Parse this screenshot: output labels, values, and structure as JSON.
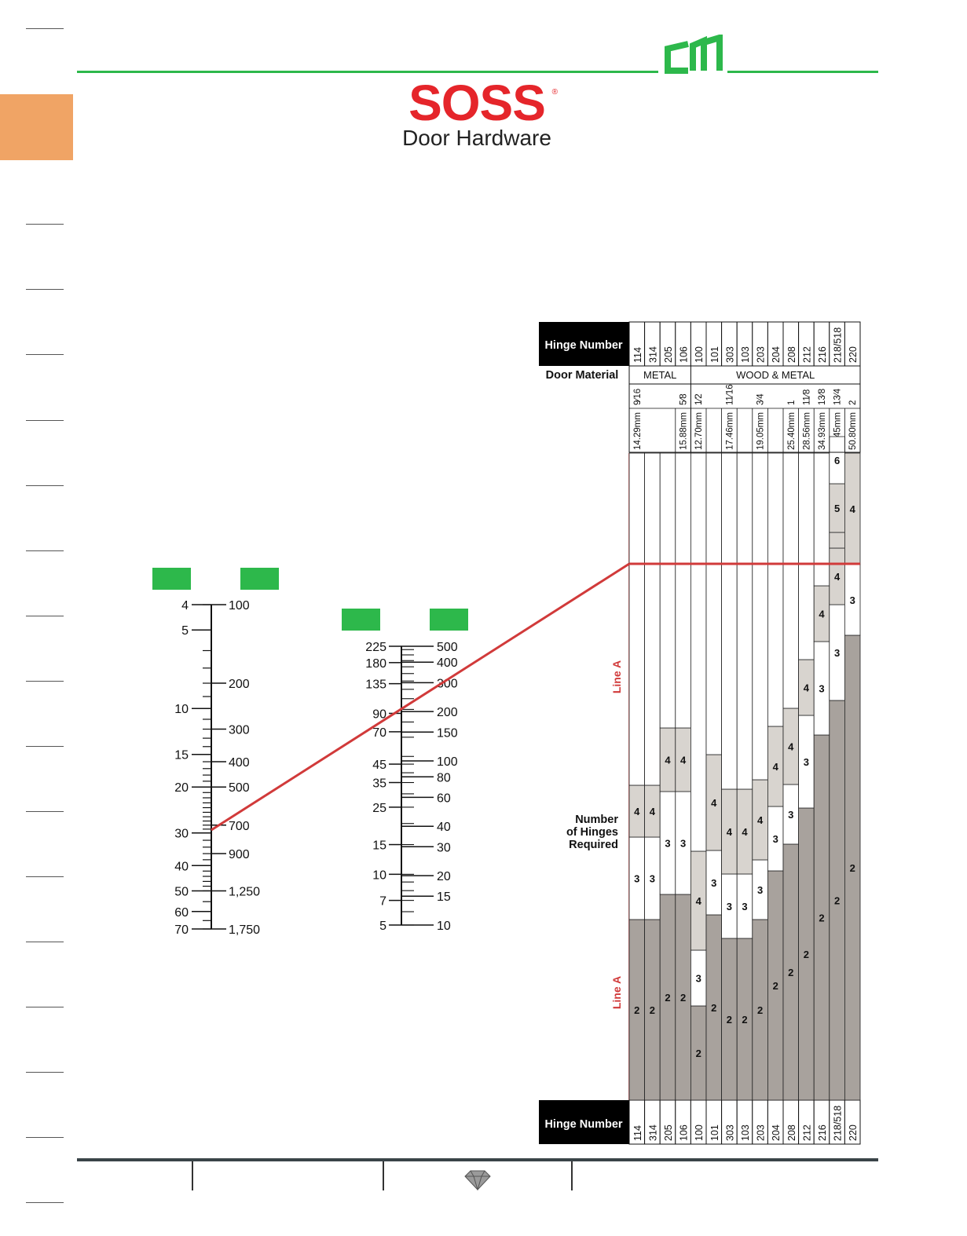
{
  "colors": {
    "accent_green": "#2db84b",
    "side_tab": "#f0a465",
    "brand_red": "#e5252a",
    "line_red": "#d13a3a",
    "cell_light": "#d8d4cf",
    "cell_dark": "#a8a29d",
    "header_black": "#000000"
  },
  "brand": {
    "name": "SOSS",
    "registered": "®",
    "subtitle": "Door Hardware"
  },
  "table": {
    "header_label": "Hinge Number",
    "footer_label": "Hinge Number",
    "door_material_label": "Door Material",
    "hinges_required_label": [
      "Number",
      "of Hinges",
      "Required"
    ],
    "line_a_label": "Line A",
    "material_groups": [
      {
        "label": "METAL"
      },
      {
        "label": "WOOD & METAL"
      }
    ],
    "columns": [
      {
        "hinge": "114",
        "thickness": "9⁄16",
        "mm": "14.29mm",
        "stack": [
          {
            "v": "2",
            "s": "d",
            "h": 230
          },
          {
            "v": "3",
            "s": "w",
            "h": 105
          },
          {
            "v": "4",
            "s": "l",
            "h": 66
          }
        ]
      },
      {
        "hinge": "314",
        "thickness": "",
        "mm": "",
        "stack": [
          {
            "v": "2",
            "s": "d",
            "h": 230
          },
          {
            "v": "3",
            "s": "w",
            "h": 105
          },
          {
            "v": "4",
            "s": "l",
            "h": 66
          }
        ]
      },
      {
        "hinge": "205",
        "thickness": "",
        "mm": "",
        "stack": [
          {
            "v": "2",
            "s": "d",
            "h": 262
          },
          {
            "v": "3",
            "s": "w",
            "h": 131
          },
          {
            "v": "4",
            "s": "l",
            "h": 81
          }
        ]
      },
      {
        "hinge": "106",
        "thickness": "5⁄8",
        "mm": "15.88mm",
        "stack": [
          {
            "v": "2",
            "s": "d",
            "h": 262
          },
          {
            "v": "3",
            "s": "w",
            "h": 131
          },
          {
            "v": "4",
            "s": "l",
            "h": 81
          }
        ]
      },
      {
        "hinge": "100",
        "thickness": "1⁄2",
        "mm": "12.70mm",
        "stack": [
          {
            "v": "2",
            "s": "d",
            "h": 120
          },
          {
            "v": "3",
            "s": "w",
            "h": 71
          },
          {
            "v": "4",
            "s": "l",
            "h": 126
          }
        ]
      },
      {
        "hinge": "101",
        "thickness": "",
        "mm": "",
        "stack": [
          {
            "v": "2",
            "s": "d",
            "h": 236
          },
          {
            "v": "3",
            "s": "w",
            "h": 82
          },
          {
            "v": "4",
            "s": "l",
            "h": 122
          }
        ]
      },
      {
        "hinge": "303",
        "thickness": "11⁄16",
        "mm": "17.46mm",
        "stack": [
          {
            "v": "2",
            "s": "d",
            "h": 206
          },
          {
            "v": "3",
            "s": "w",
            "h": 82
          },
          {
            "v": "4",
            "s": "l",
            "h": 108
          }
        ]
      },
      {
        "hinge": "103",
        "thickness": "",
        "mm": "",
        "stack": [
          {
            "v": "2",
            "s": "d",
            "h": 206
          },
          {
            "v": "3",
            "s": "w",
            "h": 82
          },
          {
            "v": "4",
            "s": "l",
            "h": 108
          }
        ]
      },
      {
        "hinge": "203",
        "thickness": "3⁄4",
        "mm": "19.05mm",
        "stack": [
          {
            "v": "2",
            "s": "d",
            "h": 230
          },
          {
            "v": "3",
            "s": "w",
            "h": 76
          },
          {
            "v": "4",
            "s": "l",
            "h": 102
          }
        ]
      },
      {
        "hinge": "204",
        "thickness": "",
        "mm": "",
        "stack": [
          {
            "v": "2",
            "s": "d",
            "h": 292
          },
          {
            "v": "3",
            "s": "w",
            "h": 82
          },
          {
            "v": "4",
            "s": "l",
            "h": 102
          }
        ]
      },
      {
        "hinge": "208",
        "thickness": "1",
        "mm": "25.40mm",
        "stack": [
          {
            "v": "2",
            "s": "d",
            "h": 326
          },
          {
            "v": "3",
            "s": "w",
            "h": 76
          },
          {
            "v": "4",
            "s": "l",
            "h": 97
          }
        ]
      },
      {
        "hinge": "212",
        "thickness": "11⁄8",
        "mm": "28.56mm",
        "stack": [
          {
            "v": "2",
            "s": "d",
            "h": 372
          },
          {
            "v": "3",
            "s": "w",
            "h": 118
          },
          {
            "v": "4",
            "s": "l",
            "h": 71
          }
        ]
      },
      {
        "hinge": "216",
        "thickness": "13⁄8",
        "mm": "34.93mm",
        "stack": [
          {
            "v": "2",
            "s": "d",
            "h": 465
          },
          {
            "v": "3",
            "s": "w",
            "h": 119
          },
          {
            "v": "4",
            "s": "l",
            "h": 71
          }
        ]
      },
      {
        "hinge": "218/518",
        "thickness": "13⁄4",
        "mm": "44.45mm",
        "stack": [
          {
            "v": "2",
            "s": "d",
            "h": 509
          },
          {
            "v": "3",
            "s": "w",
            "h": 122
          },
          {
            "v": "4",
            "s": "l",
            "h": 72
          },
          {
            "v": "",
            "s": "l",
            "h": 20
          },
          {
            "v": "5",
            "s": "l",
            "h": 62
          },
          {
            "v": "6",
            "s": "w",
            "h": 60
          }
        ]
      },
      {
        "hinge": "220",
        "thickness": "2",
        "mm": "50.80mm",
        "stack": [
          {
            "v": "2",
            "s": "d",
            "h": 592
          },
          {
            "v": "3",
            "s": "w",
            "h": 90
          },
          {
            "v": "4",
            "s": "l",
            "h": 142
          }
        ]
      }
    ]
  },
  "nomogram": {
    "scale1": {
      "left_ticks": [
        {
          "label": "4",
          "v": 4
        },
        {
          "label": "5",
          "v": 5
        },
        {
          "label": "10",
          "v": 10
        },
        {
          "label": "15",
          "v": 15
        },
        {
          "label": "20",
          "v": 20
        },
        {
          "label": "30",
          "v": 30
        },
        {
          "label": "40",
          "v": 40
        },
        {
          "label": "50",
          "v": 50
        },
        {
          "label": "60",
          "v": 60
        },
        {
          "label": "70",
          "v": 70
        }
      ],
      "right_ticks": [
        {
          "label": "100",
          "v": 100
        },
        {
          "label": "200",
          "v": 200
        },
        {
          "label": "300",
          "v": 300
        },
        {
          "label": "400",
          "v": 400
        },
        {
          "label": "500",
          "v": 500
        },
        {
          "label": "700",
          "v": 700
        },
        {
          "label": "900",
          "v": 900
        },
        {
          "label": "1,250",
          "v": 1250
        },
        {
          "label": "1,750",
          "v": 1750
        }
      ]
    },
    "scale2": {
      "left_ticks": [
        {
          "label": "225",
          "v": 225
        },
        {
          "label": "180",
          "v": 180
        },
        {
          "label": "135",
          "v": 135
        },
        {
          "label": "90",
          "v": 90
        },
        {
          "label": "70",
          "v": 70
        },
        {
          "label": "45",
          "v": 45
        },
        {
          "label": "35",
          "v": 35
        },
        {
          "label": "25",
          "v": 25
        },
        {
          "label": "15",
          "v": 15
        },
        {
          "label": "10",
          "v": 10
        },
        {
          "label": "7",
          "v": 7
        },
        {
          "label": "5",
          "v": 5
        }
      ],
      "right_ticks": [
        {
          "label": "500",
          "v": 500
        },
        {
          "label": "400",
          "v": 400
        },
        {
          "label": "300",
          "v": 300
        },
        {
          "label": "200",
          "v": 200
        },
        {
          "label": "150",
          "v": 150
        },
        {
          "label": "100",
          "v": 100
        },
        {
          "label": "80",
          "v": 80
        },
        {
          "label": "60",
          "v": 60
        },
        {
          "label": "40",
          "v": 40
        },
        {
          "label": "30",
          "v": 30
        },
        {
          "label": "20",
          "v": 20
        },
        {
          "label": "15",
          "v": 15
        },
        {
          "label": "10",
          "v": 10
        }
      ]
    }
  }
}
